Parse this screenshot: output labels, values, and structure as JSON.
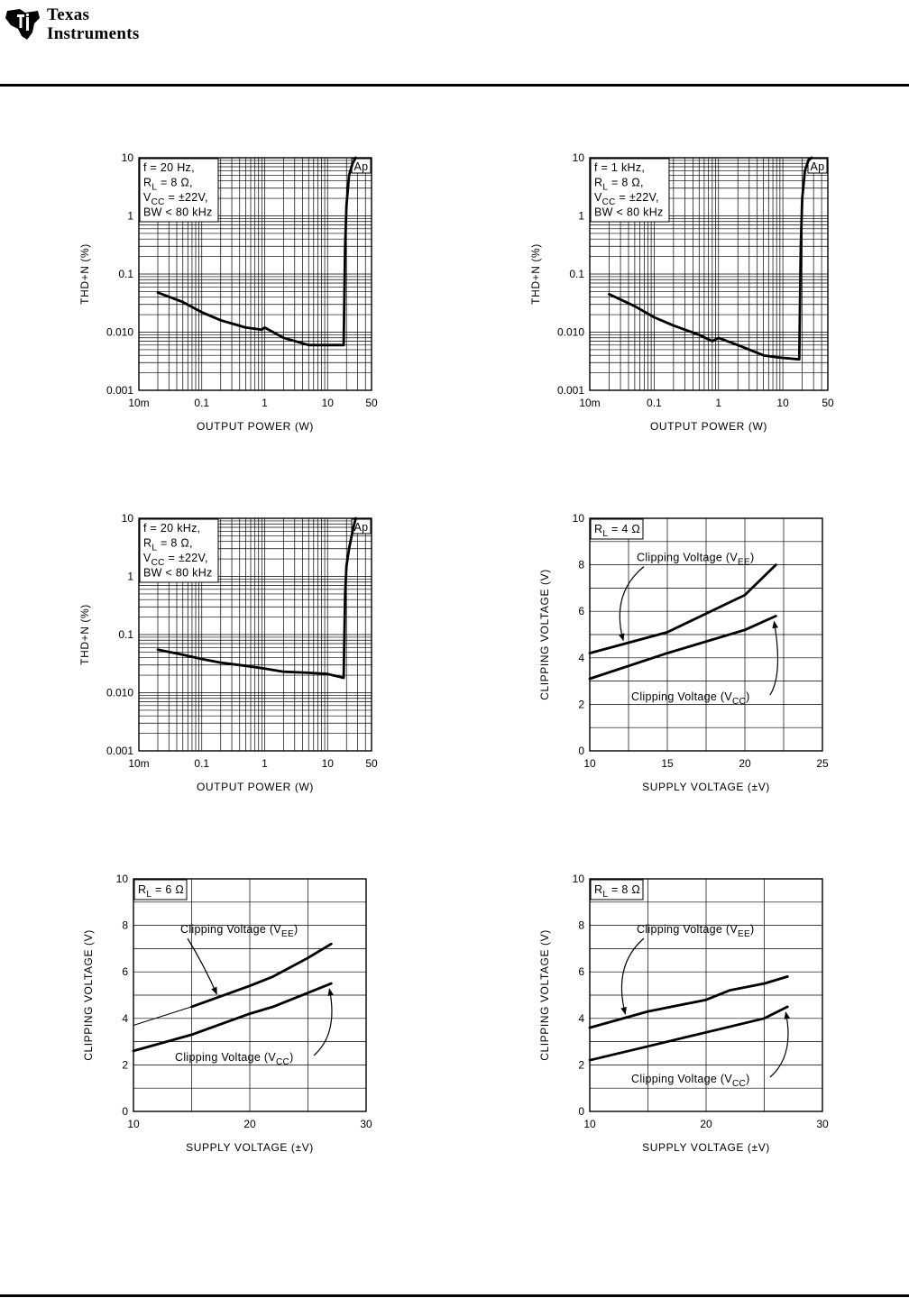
{
  "header": {
    "brand_line1": "Texas",
    "brand_line2": "Instruments"
  },
  "chart_data": [
    {
      "id": "thd-20hz",
      "type": "line",
      "xscale": "log",
      "yscale": "log",
      "xlim": [
        0.01,
        50
      ],
      "ylim": [
        0.001,
        10
      ],
      "xticks": [
        0.01,
        0.1,
        1,
        10,
        50
      ],
      "xtick_labels": [
        "10m",
        "0.1",
        "1",
        "10",
        "50"
      ],
      "yticks": [
        0.001,
        0.01,
        0.1,
        1,
        10
      ],
      "ytick_labels": [
        "0.001",
        "0.010",
        "0.1",
        "1",
        "10"
      ],
      "xlabel": "OUTPUT POWER (W)",
      "ylabel": "THD+N (%)",
      "legend": [
        "f = 20 Hz,",
        "R_L = 8 Ω,",
        "V_CC = ±22V,",
        "BW < 80 kHz"
      ],
      "corner_tag": "Ap",
      "series": [
        {
          "name": "THD+N",
          "x": [
            0.02,
            0.05,
            0.1,
            0.2,
            0.5,
            0.9,
            1.0,
            2,
            5,
            10,
            18,
            19,
            20,
            22,
            25,
            28
          ],
          "y": [
            0.048,
            0.033,
            0.022,
            0.016,
            0.012,
            0.011,
            0.012,
            0.008,
            0.006,
            0.006,
            0.006,
            0.3,
            1.5,
            5,
            8,
            10
          ]
        }
      ]
    },
    {
      "id": "thd-1khz",
      "type": "line",
      "xscale": "log",
      "yscale": "log",
      "xlim": [
        0.01,
        50
      ],
      "ylim": [
        0.001,
        10
      ],
      "xticks": [
        0.01,
        0.1,
        1,
        10,
        50
      ],
      "xtick_labels": [
        "10m",
        "0.1",
        "1",
        "10",
        "50"
      ],
      "yticks": [
        0.001,
        0.01,
        0.1,
        1,
        10
      ],
      "ytick_labels": [
        "0.001",
        "0.010",
        "0.1",
        "1",
        "10"
      ],
      "xlabel": "OUTPUT POWER (W)",
      "ylabel": "THD+N (%)",
      "legend": [
        "f = 1 kHz,",
        "R_L = 8 Ω,",
        "V_CC = ±22V,",
        "BW < 80 kHz"
      ],
      "corner_tag": "Ap",
      "series": [
        {
          "name": "THD+N",
          "x": [
            0.02,
            0.05,
            0.1,
            0.2,
            0.5,
            0.8,
            1.0,
            2,
            5,
            8,
            18,
            19,
            20,
            22,
            25,
            28
          ],
          "y": [
            0.045,
            0.028,
            0.018,
            0.013,
            0.009,
            0.007,
            0.008,
            0.006,
            0.004,
            0.0037,
            0.0034,
            0.3,
            2,
            6,
            9,
            10
          ]
        }
      ]
    },
    {
      "id": "thd-20khz",
      "type": "line",
      "xscale": "log",
      "yscale": "log",
      "xlim": [
        0.01,
        50
      ],
      "ylim": [
        0.001,
        10
      ],
      "xticks": [
        0.01,
        0.1,
        1,
        10,
        50
      ],
      "xtick_labels": [
        "10m",
        "0.1",
        "1",
        "10",
        "50"
      ],
      "yticks": [
        0.001,
        0.01,
        0.1,
        1,
        10
      ],
      "ytick_labels": [
        "0.001",
        "0.010",
        "0.1",
        "1",
        "10"
      ],
      "xlabel": "OUTPUT POWER (W)",
      "ylabel": "THD+N (%)",
      "legend": [
        "f = 20 kHz,",
        "R_L = 8 Ω,",
        "V_CC = ±22V,",
        "BW < 80 kHz"
      ],
      "corner_tag": "Ap",
      "series": [
        {
          "name": "THD+N",
          "x": [
            0.02,
            0.05,
            0.1,
            0.2,
            0.5,
            1,
            2,
            5,
            10,
            18,
            19,
            20,
            22,
            25,
            28
          ],
          "y": [
            0.055,
            0.045,
            0.038,
            0.033,
            0.029,
            0.026,
            0.023,
            0.022,
            0.021,
            0.018,
            0.5,
            1.5,
            3,
            6,
            10
          ]
        }
      ]
    },
    {
      "id": "clip-4ohm",
      "type": "line",
      "xlim": [
        10,
        25
      ],
      "ylim": [
        0,
        10
      ],
      "xticks": [
        10,
        15,
        20,
        25
      ],
      "xtick_labels": [
        "10",
        "15",
        "20",
        "25"
      ],
      "yticks": [
        0,
        2,
        4,
        6,
        8,
        10
      ],
      "ytick_labels": [
        "0",
        "2",
        "4",
        "6",
        "8",
        "10"
      ],
      "xgrid": [
        10,
        12.5,
        15,
        17.5,
        20,
        22.5,
        25
      ],
      "ygrid": [
        0,
        1,
        2,
        3,
        4,
        5,
        6,
        7,
        8,
        9,
        10
      ],
      "xlabel": "SUPPLY VOLTAGE (±V)",
      "ylabel": "CLIPPING VOLTAGE (V)",
      "legend": [
        "R_L = 4 Ω"
      ],
      "series": [
        {
          "name": "Clipping Voltage (V_EE)",
          "x": [
            10,
            15,
            20,
            22
          ],
          "y": [
            4.2,
            5.1,
            6.7,
            8.0
          ]
        },
        {
          "name": "Clipping Voltage (V_CC)",
          "x": [
            10,
            15,
            20,
            22
          ],
          "y": [
            3.1,
            4.2,
            5.2,
            5.8
          ]
        }
      ],
      "annotations": [
        "Clipping Voltage (V_EE)",
        "Clipping Voltage (V_CC)"
      ]
    },
    {
      "id": "clip-6ohm",
      "type": "line",
      "xlim": [
        10,
        30
      ],
      "ylim": [
        0,
        10
      ],
      "xticks": [
        10,
        20,
        30
      ],
      "xtick_labels": [
        "10",
        "20",
        "30"
      ],
      "yticks": [
        0,
        2,
        4,
        6,
        8,
        10
      ],
      "ytick_labels": [
        "0",
        "2",
        "4",
        "6",
        "8",
        "10"
      ],
      "xgrid": [
        10,
        15,
        20,
        25,
        30
      ],
      "ygrid": [
        0,
        1,
        2,
        3,
        4,
        5,
        6,
        7,
        8,
        9,
        10
      ],
      "xlabel": "SUPPLY VOLTAGE (±V)",
      "ylabel": "CLIPPING VOLTAGE (V)",
      "legend": [
        "R_L = 6 Ω"
      ],
      "series": [
        {
          "name": "Clipping Voltage (V_EE)",
          "x": [
            15,
            20,
            22,
            25,
            27
          ],
          "y": [
            4.5,
            5.4,
            5.8,
            6.6,
            7.2
          ]
        },
        {
          "name": "Clipping Voltage (V_EE) extrapolated",
          "x": [
            10,
            15
          ],
          "y": [
            3.7,
            4.5
          ]
        },
        {
          "name": "Clipping Voltage (V_CC)",
          "x": [
            10,
            15,
            20,
            22,
            25,
            27
          ],
          "y": [
            2.6,
            3.3,
            4.2,
            4.5,
            5.1,
            5.5
          ]
        }
      ],
      "annotations": [
        "Clipping Voltage (V_EE)",
        "Clipping Voltage (V_CC)"
      ]
    },
    {
      "id": "clip-8ohm",
      "type": "line",
      "xlim": [
        10,
        30
      ],
      "ylim": [
        0,
        10
      ],
      "xticks": [
        10,
        20,
        30
      ],
      "xtick_labels": [
        "10",
        "20",
        "30"
      ],
      "yticks": [
        0,
        2,
        4,
        6,
        8,
        10
      ],
      "ytick_labels": [
        "0",
        "2",
        "4",
        "6",
        "8",
        "10"
      ],
      "xgrid": [
        10,
        15,
        20,
        25,
        30
      ],
      "ygrid": [
        0,
        1,
        2,
        3,
        4,
        5,
        6,
        7,
        8,
        9,
        10
      ],
      "xlabel": "SUPPLY VOLTAGE (±V)",
      "ylabel": "CLIPPING VOLTAGE (V)",
      "legend": [
        "R_L = 8 Ω"
      ],
      "series": [
        {
          "name": "Clipping Voltage (V_EE)",
          "x": [
            10,
            15,
            20,
            22,
            25,
            27
          ],
          "y": [
            3.6,
            4.3,
            4.8,
            5.2,
            5.5,
            5.8
          ]
        },
        {
          "name": "Clipping Voltage (V_CC)",
          "x": [
            10,
            15,
            20,
            25,
            27
          ],
          "y": [
            2.2,
            2.8,
            3.4,
            4.0,
            4.5
          ]
        }
      ],
      "annotations": [
        "Clipping Voltage (V_EE)",
        "Clipping Voltage (V_CC)"
      ]
    }
  ]
}
